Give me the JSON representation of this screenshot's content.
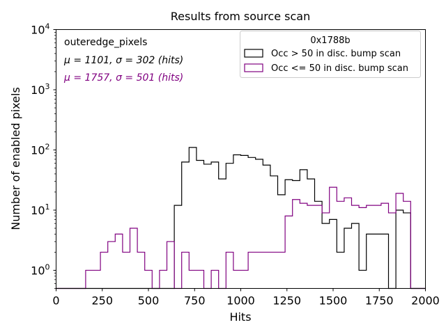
{
  "chart_data": {
    "type": "histogram-step",
    "title": "Results from source scan",
    "xlabel": "Hits",
    "ylabel": "Number of enabled pixels",
    "xlim": [
      0,
      2000
    ],
    "ylim": [
      0.5,
      10000
    ],
    "yscale": "log",
    "x_ticks": [
      0,
      250,
      500,
      750,
      1000,
      1250,
      1500,
      1750,
      2000
    ],
    "x_tick_labels": [
      "0",
      "250",
      "500",
      "750",
      "1000",
      "1250",
      "1500",
      "1750",
      "2000"
    ],
    "y_ticks": [
      1,
      10,
      100,
      1000,
      10000
    ],
    "y_tick_labels": [
      {
        "base": "10",
        "exp": "0"
      },
      {
        "base": "10",
        "exp": "1"
      },
      {
        "base": "10",
        "exp": "2"
      },
      {
        "base": "10",
        "exp": "3"
      },
      {
        "base": "10",
        "exp": "4"
      }
    ],
    "grid": false,
    "annotations": {
      "region": "outeredge_pixels",
      "stats_black": "μ = 1101, σ = 302 (hits)",
      "stats_purple": "μ = 1757, σ = 501 (hits)"
    },
    "legend": {
      "title": "0x1788b",
      "placement": "top-right",
      "entries": [
        {
          "label": "Occ > 50 in disc. bump scan",
          "color": "#000000"
        },
        {
          "label": "Occ <= 50 in disc. bump scan",
          "color": "#800080"
        }
      ]
    },
    "bin_width": 40,
    "bin_start": 0,
    "series": [
      {
        "name": "Occ > 50 in disc. bump scan",
        "color": "#000000",
        "values": [
          0,
          0,
          0,
          0,
          0,
          0,
          0,
          0,
          0,
          0,
          0,
          0,
          0,
          0,
          0,
          0,
          12,
          63,
          110,
          67,
          58,
          63,
          33,
          60,
          83,
          81,
          75,
          70,
          56,
          37,
          18,
          32,
          31,
          47,
          33,
          14,
          6,
          7,
          2,
          5,
          6,
          1,
          4,
          4,
          4,
          0,
          10,
          9,
          0,
          0
        ]
      },
      {
        "name": "Occ <= 50 in disc. bump scan",
        "color": "#800080",
        "values": [
          0,
          0,
          0,
          0,
          1,
          1,
          2,
          3,
          4,
          2,
          5,
          2,
          1,
          0,
          1,
          3,
          0,
          2,
          1,
          1,
          0,
          1,
          0,
          2,
          1,
          1,
          2,
          2,
          2,
          2,
          2,
          8,
          15,
          13,
          12,
          12,
          9,
          24,
          14,
          16,
          12,
          11,
          12,
          12,
          13,
          9,
          19,
          14,
          0,
          0
        ]
      }
    ]
  }
}
